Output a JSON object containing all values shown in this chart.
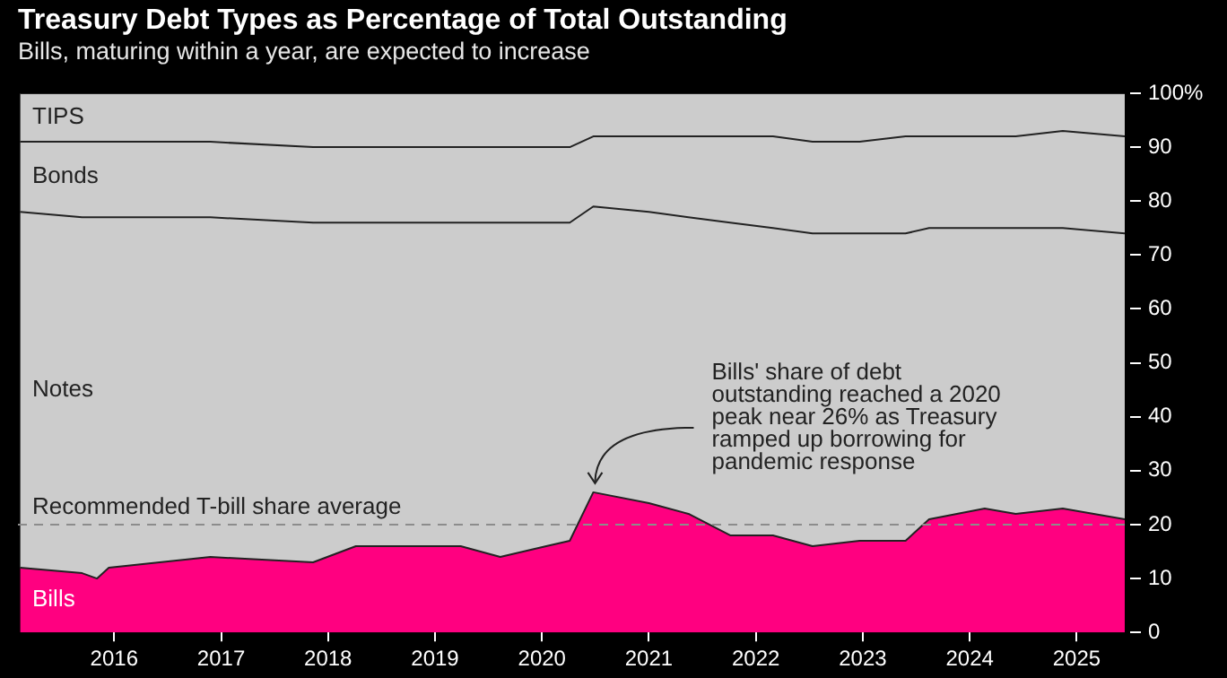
{
  "chart_data": {
    "type": "area",
    "stacked": true,
    "title": "Treasury Debt Types as Percentage of Total Outstanding",
    "subtitle": "Bills, maturing within a year, are expected to increase",
    "x": [
      2015.12,
      2015.7,
      2015.84,
      2015.95,
      2016.9,
      2017.86,
      2018.26,
      2019.24,
      2019.61,
      2020.04,
      2020.26,
      2020.48,
      2021.0,
      2021.37,
      2021.76,
      2022.16,
      2022.53,
      2022.97,
      2023.4,
      2023.62,
      2024.14,
      2024.43,
      2024.87,
      2025.45
    ],
    "series": [
      {
        "name": "Bills",
        "color": "#ff0080",
        "values": [
          12,
          11,
          10,
          12,
          14,
          13,
          16,
          16,
          14,
          16,
          17,
          26,
          24,
          22,
          18,
          18,
          16,
          17,
          17,
          21,
          23,
          22,
          23,
          21
        ]
      },
      {
        "name": "Notes",
        "color": "#cccccc",
        "values": [
          66,
          66,
          67,
          65,
          63,
          63,
          60,
          60,
          62,
          60,
          59,
          53,
          54,
          55,
          58,
          57,
          58,
          57,
          57,
          54,
          52,
          53,
          52,
          53
        ]
      },
      {
        "name": "Bonds",
        "color": "#cccccc",
        "values": [
          13,
          14,
          14,
          14,
          14,
          14,
          14,
          14,
          14,
          14,
          14,
          13,
          14,
          15,
          16,
          17,
          17,
          17,
          18,
          17,
          17,
          17,
          18,
          18
        ]
      },
      {
        "name": "TIPS",
        "color": "#cccccc",
        "values": [
          9,
          9,
          9,
          9,
          9,
          10,
          10,
          10,
          10,
          10,
          10,
          8,
          8,
          8,
          8,
          8,
          9,
          9,
          8,
          8,
          8,
          8,
          7,
          8
        ]
      }
    ],
    "xlim": [
      2015.1,
      2025.5
    ],
    "xticks": [
      2016,
      2017,
      2018,
      2019,
      2020,
      2021,
      2022,
      2023,
      2024,
      2025
    ],
    "ylim": [
      0,
      100
    ],
    "yticks": [
      0,
      10,
      20,
      30,
      40,
      50,
      60,
      70,
      80,
      90,
      {
        "value": 100,
        "label": "100%"
      }
    ],
    "ref_lines": [
      {
        "axis": "y",
        "value": 20,
        "label": "Recommended T-bill share average",
        "color": "#8c8c8c",
        "line_style": "dashed"
      }
    ],
    "annotations": [
      {
        "text": "Bills' share of debt\noutstanding reached a 2020\npeak near 26% as Treasury\nramped up borrowing for\npandemic response",
        "x": 2020.48,
        "y": 26
      }
    ],
    "grid": false,
    "legend": false
  }
}
